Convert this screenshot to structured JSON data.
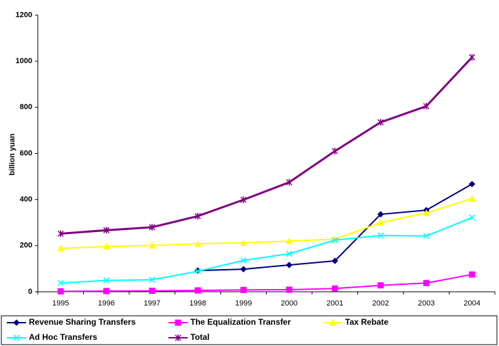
{
  "chart_data": {
    "type": "line",
    "y_label": "billion yuan",
    "categories": [
      "1995",
      "1996",
      "1997",
      "1998",
      "1999",
      "2000",
      "2001",
      "2002",
      "2003",
      "2004"
    ],
    "ylim": [
      0,
      1200
    ],
    "yticks": [
      0,
      200,
      400,
      600,
      800,
      1000,
      1200
    ],
    "legend": "bottom",
    "series": [
      {
        "name": "Revenue Sharing Transfers",
        "color": "#000080",
        "marker": "diamond",
        "values": [
          null,
          null,
          null,
          92,
          98,
          116,
          134,
          336,
          354,
          467
        ]
      },
      {
        "name": "The Equalization Transfer",
        "color": "#ff00ff",
        "marker": "square",
        "values": [
          2,
          3,
          4,
          6,
          8,
          9,
          14,
          28,
          38,
          75
        ]
      },
      {
        "name": "Tax Rebate",
        "color": "#ffff00",
        "marker": "triangle",
        "values": [
          188,
          196,
          201,
          208,
          212,
          220,
          228,
          300,
          342,
          404
        ]
      },
      {
        "name": "Ad Hoc Transfers",
        "color": "#00ffff",
        "marker": "x",
        "values": [
          38,
          49,
          52,
          89,
          136,
          165,
          224,
          244,
          242,
          322
        ]
      },
      {
        "name": "Total",
        "color": "#800080",
        "marker": "star",
        "values": [
          252,
          267,
          280,
          328,
          399,
          475,
          610,
          735,
          805,
          1017
        ]
      }
    ]
  }
}
